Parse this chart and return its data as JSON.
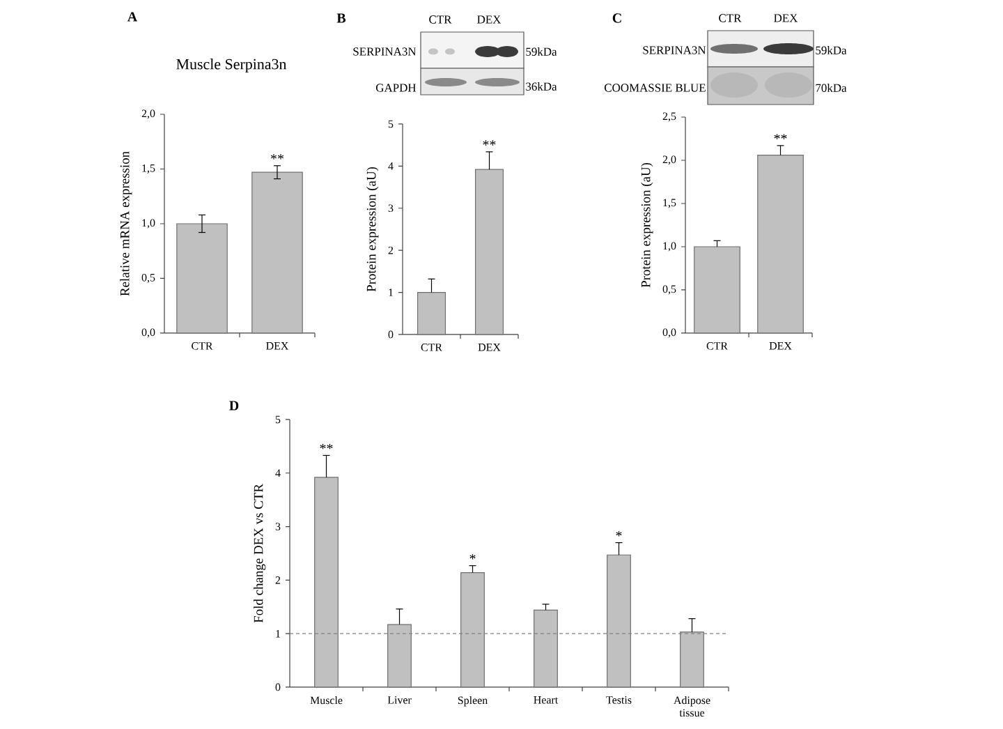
{
  "chart_data": [
    {
      "type": "bar",
      "title": "Muscle Serpina3n",
      "ylabel": "Relative mRNA expression",
      "categories": [
        "CTR",
        "DEX"
      ],
      "values": [
        1.0,
        1.47
      ],
      "errors": [
        0.08,
        0.06
      ],
      "color": "#c0c0c0",
      "ylim": [
        0,
        2
      ],
      "yticks": [
        {
          "value": 0,
          "label": "0,0"
        },
        {
          "value": 0.5,
          "label": "0,5"
        },
        {
          "value": 1,
          "label": "1,0"
        },
        {
          "value": 1.5,
          "label": "1,5"
        },
        {
          "value": 2,
          "label": "2,0"
        }
      ],
      "annotations": [
        "A",
        "**"
      ]
    },
    {
      "type": "bar",
      "ylabel": "Protein expression (aU)",
      "categories": [
        "CTR",
        "DEX"
      ],
      "values": [
        1.0,
        3.92
      ],
      "errors": [
        [
          1.0,
          1.32
        ],
        [
          3.92,
          4.34
        ]
      ],
      "color": "#c0c0c0",
      "ylim": [
        0,
        5
      ],
      "yticks": [
        0,
        1,
        2,
        3,
        4,
        5
      ],
      "annotations": [
        "B",
        "CTR",
        "DEX",
        "SERPINA3N",
        "GAPDH",
        "59kDa",
        "36kDa",
        "**"
      ]
    },
    {
      "type": "bar",
      "ylabel": "Protein expression (aU)",
      "categories": [
        "CTR",
        "DEX"
      ],
      "values": [
        1.0,
        2.06
      ],
      "errors": [
        [
          1.0,
          1.07
        ],
        [
          2.06,
          2.17
        ]
      ],
      "color": "#c0c0c0",
      "ylim": [
        0,
        2.5
      ],
      "yticks": [
        {
          "value": 0,
          "label": "0,0"
        },
        {
          "value": 0.5,
          "label": "0,5"
        },
        {
          "value": 1,
          "label": "1,0"
        },
        {
          "value": 1.5,
          "label": "1,5"
        },
        {
          "value": 2,
          "label": "2,0"
        },
        {
          "value": 2.5,
          "label": "2,5"
        }
      ],
      "annotations": [
        "C",
        "CTR",
        "DEX",
        "SERPINA3N",
        "COOMASSIE BLUE",
        "59kDa",
        "70kDa",
        "**"
      ]
    },
    {
      "type": "bar",
      "ylabel": "Fold change DEX vs CTR",
      "categories": [
        "Muscle",
        "Liver",
        "Spleen",
        "Heart",
        "Testis",
        "Adipose tissue"
      ],
      "values": [
        3.92,
        1.17,
        2.14,
        1.44,
        2.47,
        1.03
      ],
      "errors": [
        [
          3.92,
          4.33
        ],
        [
          1.17,
          1.46
        ],
        [
          2.14,
          2.27
        ],
        [
          1.44,
          1.55
        ],
        [
          2.47,
          2.7
        ],
        [
          1.03,
          1.28
        ]
      ],
      "color": "#c0c0c0",
      "ylim": [
        0,
        5
      ],
      "yticks": [
        0,
        1,
        2,
        3,
        4,
        5
      ],
      "ref_lines": [
        {
          "axis": "y",
          "value": 1,
          "color": "#808080",
          "line_style": "dashed"
        }
      ],
      "annotations": [
        "D",
        "**",
        "*",
        "*"
      ]
    }
  ]
}
